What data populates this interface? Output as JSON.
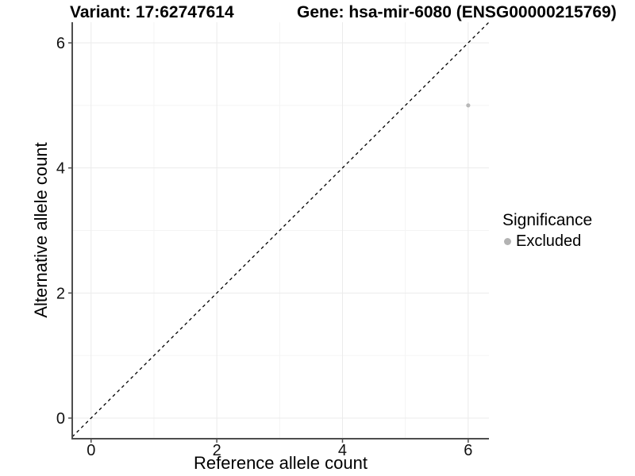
{
  "chart_data": {
    "type": "scatter",
    "title_left": "Variant: 17:62747614",
    "title_right": "Gene: hsa-mir-6080 (ENSG00000215769)",
    "xlabel": "Reference allele count",
    "ylabel": "Alternative allele count",
    "xlim": [
      -0.3,
      6.33
    ],
    "ylim": [
      -0.33,
      6.33
    ],
    "x_major_ticks": [
      0,
      2,
      4,
      6
    ],
    "y_major_ticks": [
      0,
      2,
      4,
      6
    ],
    "x_minor_gridlines": [
      1,
      3,
      5
    ],
    "y_minor_gridlines": [
      1,
      3,
      5
    ],
    "grid": "major and minor gridlines on white background",
    "identity_line": {
      "slope": 1,
      "intercept": 0,
      "style": "dashed",
      "color": "#000000"
    },
    "series": [
      {
        "name": "Excluded",
        "color": "#b8b8b8",
        "point_radius": 2.6,
        "points": [
          {
            "x": 6,
            "y": 5
          }
        ]
      }
    ],
    "legend": {
      "title": "Significance",
      "position": "right",
      "items": [
        {
          "label": "Excluded",
          "color": "#b3b3b3",
          "dot_icon": "circle"
        }
      ]
    },
    "colors": {
      "background": "#ffffff",
      "grid_major": "#ebebeb",
      "grid_minor": "#f4f4f4",
      "axis_line": "#4d4d4d",
      "tick_mark": "#4d4d4d",
      "tick_text": "#111111",
      "title_text": "#000000"
    }
  }
}
